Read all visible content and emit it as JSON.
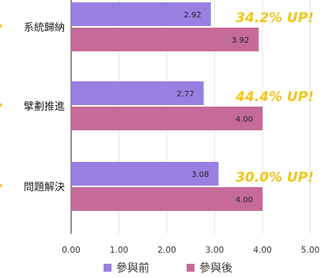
{
  "chart_data": {
    "type": "bar",
    "orientation": "horizontal",
    "categories": [
      "系統歸納",
      "擘劃推進",
      "問題解決"
    ],
    "series": [
      {
        "name": "參與前",
        "values": [
          2.92,
          2.77,
          3.08
        ],
        "value_labels": [
          "2.92",
          "2.77",
          "3.08"
        ],
        "color": "#9a7fe2"
      },
      {
        "name": "參與後",
        "values": [
          3.92,
          4.0,
          4.0
        ],
        "value_labels": [
          "3.92",
          "4.00",
          "4.00"
        ],
        "color": "#c56a99"
      }
    ],
    "annotations": [
      "34.2% UP!",
      "44.4% UP!",
      "30.0% UP!"
    ],
    "annotation_color": "#f2c51b",
    "xlim": [
      -5,
      5
    ],
    "ticks": [
      {
        "value": -5,
        "label": "5.00"
      },
      {
        "value": 0,
        "label": "0.00"
      },
      {
        "value": 1,
        "label": "1.00"
      },
      {
        "value": 2,
        "label": "2.00"
      },
      {
        "value": 3,
        "label": "3.00"
      },
      {
        "value": 4,
        "label": "4.00"
      },
      {
        "value": 5,
        "label": "5.00"
      }
    ],
    "grid": true,
    "legend_position": "bottom"
  }
}
